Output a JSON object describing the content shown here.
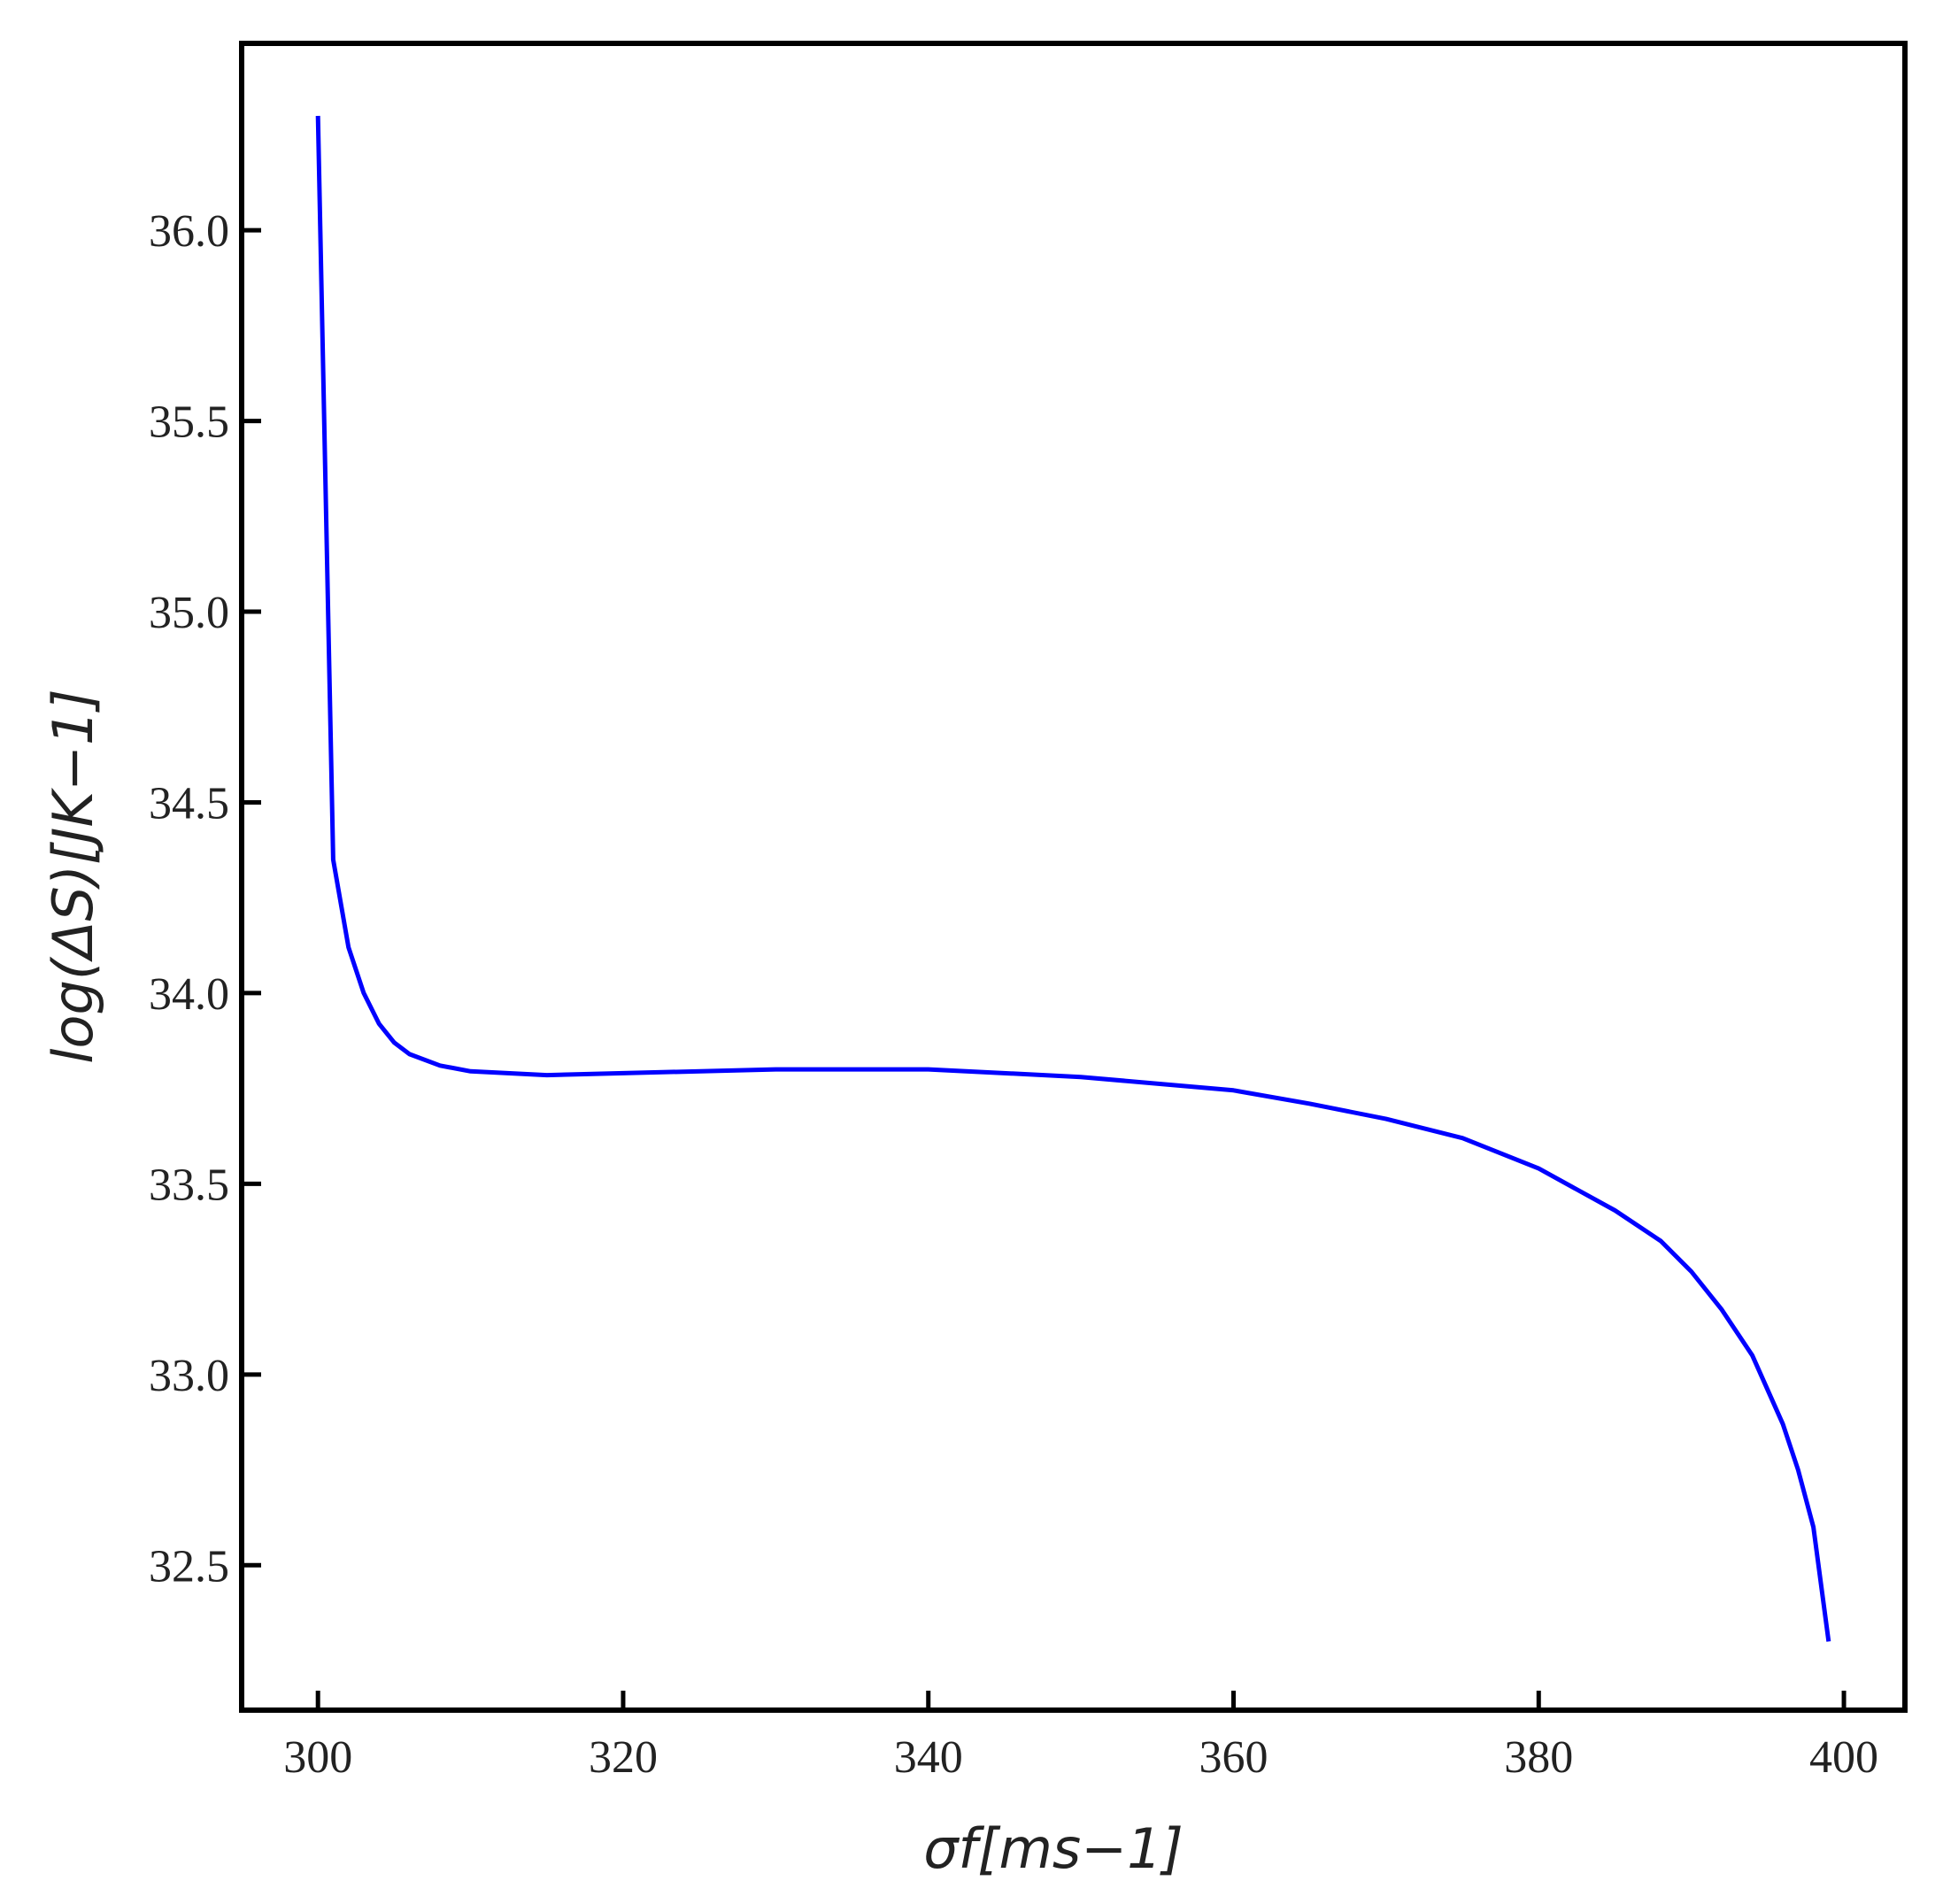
{
  "chart_data": {
    "type": "line",
    "xlabel": "σf[ms−1]",
    "ylabel": "log(ΔS)[JK−1]",
    "x": [
      300,
      301,
      302,
      303,
      304,
      305,
      306,
      308,
      310,
      315,
      320,
      330,
      340,
      350,
      360,
      365,
      370,
      375,
      380,
      385,
      388,
      390,
      392,
      394,
      396,
      397,
      398,
      399
    ],
    "values": [
      36.3,
      34.35,
      34.12,
      34.0,
      33.92,
      33.87,
      33.84,
      33.81,
      33.795,
      33.785,
      33.79,
      33.8,
      33.8,
      33.78,
      33.745,
      33.71,
      33.67,
      33.62,
      33.54,
      33.43,
      33.35,
      33.27,
      33.17,
      33.05,
      32.87,
      32.75,
      32.6,
      32.3
    ],
    "color": "#0000ff",
    "xlim": [
      295,
      404
    ],
    "ylim": [
      32.12,
      36.49
    ],
    "xticks": [
      300,
      320,
      340,
      360,
      380,
      400
    ],
    "yticks": [
      {
        "value": 32.5,
        "label": "32.5"
      },
      {
        "value": 33,
        "label": "33.0"
      },
      {
        "value": 33.5,
        "label": "33.5"
      },
      {
        "value": 34,
        "label": "34.0"
      },
      {
        "value": 34.5,
        "label": "34.5"
      },
      {
        "value": 35,
        "label": "35.0"
      },
      {
        "value": 35.5,
        "label": "35.5"
      },
      {
        "value": 36,
        "label": "36.0"
      }
    ]
  }
}
